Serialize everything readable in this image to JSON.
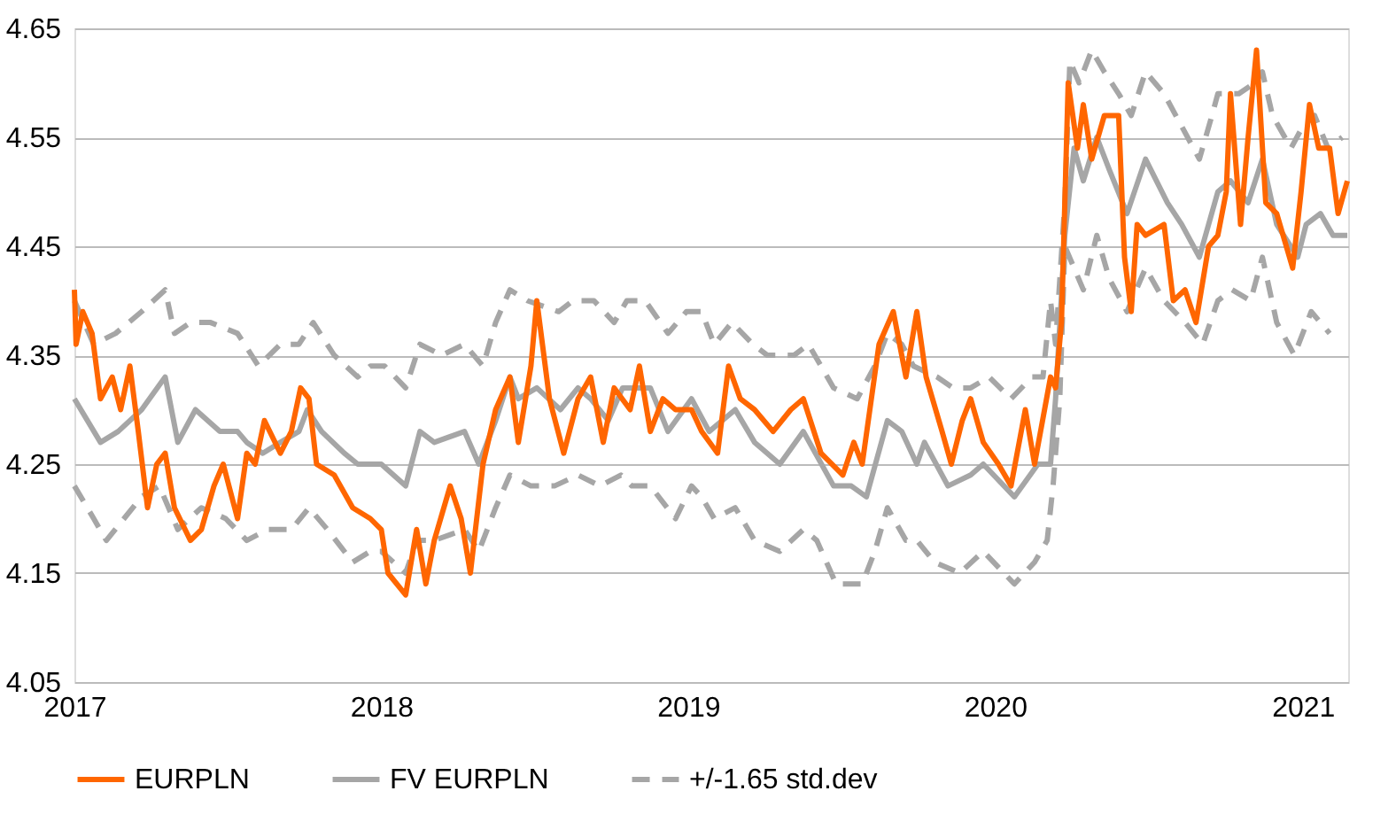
{
  "chart_data": {
    "type": "line",
    "xlim": [
      "2017-01-01",
      "2021-02-24"
    ],
    "xticks": [
      "2017",
      "2018",
      "2019",
      "2020",
      "2021"
    ],
    "ylim": [
      4.05,
      4.65
    ],
    "yticks": [
      4.05,
      4.15,
      4.25,
      4.35,
      4.45,
      4.55,
      4.65
    ],
    "grid": "y",
    "legend": "bottom",
    "marker": "none",
    "series": [
      {
        "name": "EURPLN",
        "color": "#ff6600",
        "line_style": "solid",
        "x": [
          "2017-01-01",
          "2017-01-03",
          "2017-01-11",
          "2017-01-22",
          "2017-02-01",
          "2017-02-15",
          "2017-02-25",
          "2017-03-08",
          "2017-03-18",
          "2017-03-29",
          "2017-04-09",
          "2017-04-19",
          "2017-04-30",
          "2017-05-19",
          "2017-06-01",
          "2017-06-16",
          "2017-06-27",
          "2017-07-14",
          "2017-07-25",
          "2017-08-04",
          "2017-08-15",
          "2017-09-03",
          "2017-09-16",
          "2017-09-27",
          "2017-10-07",
          "2017-10-16",
          "2017-11-06",
          "2017-11-28",
          "2017-12-19",
          "2018-01-01",
          "2018-01-09",
          "2018-01-30",
          "2018-02-12",
          "2018-02-23",
          "2018-03-05",
          "2018-03-24",
          "2018-04-06",
          "2018-04-17",
          "2018-05-02",
          "2018-05-17",
          "2018-06-03",
          "2018-06-13",
          "2018-06-28",
          "2018-07-05",
          "2018-07-20",
          "2018-08-06",
          "2018-08-23",
          "2018-09-07",
          "2018-09-22",
          "2018-10-05",
          "2018-10-24",
          "2018-11-04",
          "2018-11-17",
          "2018-12-02",
          "2018-12-17",
          "2019-01-05",
          "2019-01-17",
          "2019-02-05",
          "2019-02-18",
          "2019-03-04",
          "2019-03-21",
          "2019-04-12",
          "2019-05-03",
          "2019-05-18",
          "2019-06-08",
          "2019-07-04",
          "2019-07-17",
          "2019-07-27",
          "2019-08-16",
          "2019-09-02",
          "2019-09-17",
          "2019-09-30",
          "2019-10-11",
          "2019-10-30",
          "2019-11-10",
          "2019-11-23",
          "2019-12-03",
          "2019-12-18",
          "2020-01-05",
          "2020-01-20",
          "2020-02-06",
          "2020-02-17",
          "2020-03-07",
          "2020-03-13",
          "2020-03-20",
          "2020-03-28",
          "2020-04-08",
          "2020-04-15",
          "2020-04-25",
          "2020-05-10",
          "2020-05-27",
          "2020-06-03",
          "2020-06-11",
          "2020-06-18",
          "2020-06-28",
          "2020-07-20",
          "2020-07-31",
          "2020-08-14",
          "2020-08-27",
          "2020-09-11",
          "2020-09-22",
          "2020-10-02",
          "2020-10-07",
          "2020-10-19",
          "2020-10-28",
          "2020-11-07",
          "2020-11-18",
          "2020-12-01",
          "2020-12-20",
          "2020-12-30",
          "2021-01-09",
          "2021-01-20",
          "2021-02-02",
          "2021-02-12",
          "2021-02-23"
        ],
        "values": [
          4.41,
          4.36,
          4.39,
          4.37,
          4.31,
          4.33,
          4.3,
          4.34,
          4.28,
          4.21,
          4.25,
          4.26,
          4.21,
          4.18,
          4.19,
          4.23,
          4.25,
          4.2,
          4.26,
          4.25,
          4.29,
          4.26,
          4.28,
          4.32,
          4.31,
          4.25,
          4.24,
          4.21,
          4.2,
          4.19,
          4.15,
          4.13,
          4.19,
          4.14,
          4.18,
          4.23,
          4.2,
          4.15,
          4.25,
          4.3,
          4.33,
          4.27,
          4.34,
          4.4,
          4.31,
          4.26,
          4.31,
          4.33,
          4.27,
          4.32,
          4.3,
          4.34,
          4.28,
          4.31,
          4.3,
          4.3,
          4.28,
          4.26,
          4.34,
          4.31,
          4.3,
          4.28,
          4.3,
          4.31,
          4.26,
          4.24,
          4.27,
          4.25,
          4.36,
          4.39,
          4.33,
          4.39,
          4.33,
          4.28,
          4.25,
          4.29,
          4.31,
          4.27,
          4.25,
          4.23,
          4.3,
          4.25,
          4.33,
          4.32,
          4.38,
          4.6,
          4.54,
          4.58,
          4.53,
          4.57,
          4.57,
          4.44,
          4.39,
          4.47,
          4.46,
          4.47,
          4.4,
          4.41,
          4.38,
          4.45,
          4.46,
          4.5,
          4.59,
          4.47,
          4.55,
          4.63,
          4.49,
          4.48,
          4.43,
          4.5,
          4.58,
          4.54,
          4.54,
          4.48,
          4.51
        ]
      },
      {
        "name": "FV EURPLN",
        "color": "#a6a6a6",
        "line_style": "solid",
        "x": [
          "2017-01-01",
          "2017-02-01",
          "2017-02-22",
          "2017-03-22",
          "2017-04-19",
          "2017-05-04",
          "2017-05-25",
          "2017-06-23",
          "2017-07-14",
          "2017-07-25",
          "2017-08-13",
          "2017-09-03",
          "2017-09-25",
          "2017-10-05",
          "2017-10-22",
          "2017-11-18",
          "2017-12-04",
          "2017-12-19",
          "2018-01-01",
          "2018-01-30",
          "2018-02-16",
          "2018-03-05",
          "2018-04-10",
          "2018-04-27",
          "2018-05-17",
          "2018-06-03",
          "2018-06-13",
          "2018-07-05",
          "2018-08-02",
          "2018-08-23",
          "2018-09-07",
          "2018-09-28",
          "2018-10-15",
          "2018-11-04",
          "2018-11-17",
          "2018-12-08",
          "2019-01-05",
          "2019-01-26",
          "2019-02-26",
          "2019-03-21",
          "2019-04-20",
          "2019-05-18",
          "2019-06-23",
          "2019-07-14",
          "2019-08-01",
          "2019-08-26",
          "2019-09-12",
          "2019-09-30",
          "2019-10-09",
          "2019-11-06",
          "2019-12-03",
          "2019-12-18",
          "2020-01-24",
          "2020-02-21",
          "2020-03-07",
          "2020-03-13",
          "2020-03-24",
          "2020-04-04",
          "2020-04-15",
          "2020-05-01",
          "2020-05-16",
          "2020-06-06",
          "2020-06-28",
          "2020-07-24",
          "2020-08-10",
          "2020-08-31",
          "2020-09-22",
          "2020-10-07",
          "2020-10-28",
          "2020-11-14",
          "2020-12-01",
          "2020-12-26",
          "2021-01-05",
          "2021-01-22",
          "2021-02-06",
          "2021-02-23"
        ],
        "values": [
          4.31,
          4.27,
          4.28,
          4.3,
          4.33,
          4.27,
          4.3,
          4.28,
          4.28,
          4.27,
          4.26,
          4.27,
          4.28,
          4.3,
          4.28,
          4.26,
          4.25,
          4.25,
          4.25,
          4.23,
          4.28,
          4.27,
          4.28,
          4.25,
          4.29,
          4.33,
          4.31,
          4.32,
          4.3,
          4.32,
          4.31,
          4.29,
          4.32,
          4.32,
          4.32,
          4.28,
          4.31,
          4.28,
          4.3,
          4.27,
          4.25,
          4.28,
          4.23,
          4.23,
          4.22,
          4.29,
          4.28,
          4.25,
          4.27,
          4.23,
          4.24,
          4.25,
          4.22,
          4.25,
          4.25,
          4.31,
          4.46,
          4.54,
          4.51,
          4.55,
          4.52,
          4.48,
          4.53,
          4.49,
          4.47,
          4.44,
          4.5,
          4.51,
          4.49,
          4.53,
          4.47,
          4.44,
          4.47,
          4.48,
          4.46,
          4.46
        ]
      },
      {
        "name": "+/-1.65 std.dev",
        "color": "#a6a6a6",
        "line_style": "dashed",
        "x": [
          "2017-01-01",
          "2017-01-24",
          "2017-02-19",
          "2017-03-22",
          "2017-04-19",
          "2017-04-30",
          "2017-05-19",
          "2017-06-12",
          "2017-07-14",
          "2017-08-08",
          "2017-09-03",
          "2017-09-25",
          "2017-10-12",
          "2017-11-06",
          "2017-12-04",
          "2017-12-19",
          "2018-01-05",
          "2018-01-30",
          "2018-02-16",
          "2018-03-14",
          "2018-04-10",
          "2018-05-02",
          "2018-05-17",
          "2018-06-03",
          "2018-06-24",
          "2018-07-31",
          "2018-08-17",
          "2018-09-11",
          "2018-10-05",
          "2018-10-20",
          "2018-11-11",
          "2018-12-08",
          "2018-12-30",
          "2019-01-17",
          "2019-02-01",
          "2019-02-22",
          "2019-03-19",
          "2019-04-05",
          "2019-05-07",
          "2019-05-24",
          "2019-06-23",
          "2019-07-21",
          "2019-08-11",
          "2019-08-26",
          "2019-09-12",
          "2019-09-26",
          "2019-10-24",
          "2019-11-12",
          "2019-12-03",
          "2019-12-25",
          "2020-01-20",
          "2020-02-14",
          "2020-02-27",
          "2020-03-07",
          "2020-03-13",
          "2020-03-24",
          "2020-03-30",
          "2020-04-10",
          "2020-04-25",
          "2020-05-10",
          "2020-05-27",
          "2020-06-11",
          "2020-06-28",
          "2020-07-20",
          "2020-08-10",
          "2020-08-31",
          "2020-09-15",
          "2020-09-22",
          "2020-10-17",
          "2020-11-05",
          "2020-11-14",
          "2020-11-26",
          "2020-12-18",
          "2021-01-01",
          "2021-01-15",
          "2021-01-31",
          "2021-02-17"
        ],
        "values": [
          4.4,
          4.36,
          4.37,
          4.39,
          4.41,
          4.37,
          4.38,
          4.38,
          4.37,
          4.34,
          4.36,
          4.36,
          4.38,
          4.35,
          4.33,
          4.34,
          4.34,
          4.32,
          4.36,
          4.35,
          4.36,
          4.34,
          4.38,
          4.41,
          4.4,
          4.39,
          4.4,
          4.4,
          4.38,
          4.4,
          4.4,
          4.37,
          4.39,
          4.39,
          4.36,
          4.38,
          4.36,
          4.35,
          4.35,
          4.36,
          4.32,
          4.31,
          4.34,
          4.37,
          4.36,
          4.34,
          4.33,
          4.32,
          4.32,
          4.33,
          4.31,
          4.33,
          4.33,
          4.4,
          4.36,
          4.49,
          4.62,
          4.6,
          4.63,
          4.61,
          4.59,
          4.57,
          4.61,
          4.59,
          4.56,
          4.53,
          4.57,
          4.59,
          4.59,
          4.6,
          4.61,
          4.57,
          4.54,
          4.56,
          4.57,
          4.54,
          4.55
        ]
      },
      {
        "color": "#a6a6a6",
        "line_style": "dashed",
        "x": [
          "2017-01-01",
          "2017-01-24",
          "2017-02-08",
          "2017-03-01",
          "2017-03-22",
          "2017-04-12",
          "2017-05-04",
          "2017-06-01",
          "2017-06-30",
          "2017-07-25",
          "2017-08-19",
          "2017-09-16",
          "2017-10-07",
          "2017-10-29",
          "2017-11-28",
          "2017-12-19",
          "2018-01-01",
          "2018-01-30",
          "2018-02-12",
          "2018-03-05",
          "2018-04-10",
          "2018-04-27",
          "2018-05-17",
          "2018-06-03",
          "2018-06-28",
          "2018-07-26",
          "2018-08-23",
          "2018-09-18",
          "2018-10-13",
          "2018-10-26",
          "2018-11-17",
          "2018-12-17",
          "2019-01-05",
          "2019-01-17",
          "2019-02-01",
          "2019-02-26",
          "2019-03-21",
          "2019-04-20",
          "2019-05-18",
          "2019-06-03",
          "2019-06-26",
          "2019-07-27",
          "2019-08-11",
          "2019-08-26",
          "2019-09-17",
          "2019-09-30",
          "2019-10-21",
          "2019-11-20",
          "2019-12-18",
          "2020-01-24",
          "2020-02-17",
          "2020-03-03",
          "2020-03-10",
          "2020-03-18",
          "2020-03-24",
          "2020-04-04",
          "2020-04-15",
          "2020-05-01",
          "2020-05-16",
          "2020-06-06",
          "2020-06-28",
          "2020-07-20",
          "2020-08-14",
          "2020-09-04",
          "2020-09-22",
          "2020-10-09",
          "2020-10-31",
          "2020-11-14",
          "2020-12-01",
          "2020-12-22",
          "2021-01-11",
          "2021-02-02"
        ],
        "values": [
          4.23,
          4.2,
          4.18,
          4.2,
          4.22,
          4.23,
          4.19,
          4.21,
          4.2,
          4.18,
          4.19,
          4.19,
          4.21,
          4.19,
          4.16,
          4.17,
          4.17,
          4.15,
          4.18,
          4.18,
          4.19,
          4.17,
          4.21,
          4.24,
          4.23,
          4.23,
          4.24,
          4.23,
          4.24,
          4.23,
          4.23,
          4.2,
          4.23,
          4.22,
          4.2,
          4.21,
          4.18,
          4.17,
          4.19,
          4.18,
          4.14,
          4.14,
          4.17,
          4.21,
          4.18,
          4.18,
          4.16,
          4.15,
          4.17,
          4.14,
          4.16,
          4.18,
          4.23,
          4.31,
          4.45,
          4.43,
          4.41,
          4.46,
          4.42,
          4.39,
          4.43,
          4.4,
          4.38,
          4.36,
          4.4,
          4.41,
          4.4,
          4.44,
          4.38,
          4.35,
          4.39,
          4.37
        ]
      }
    ]
  }
}
